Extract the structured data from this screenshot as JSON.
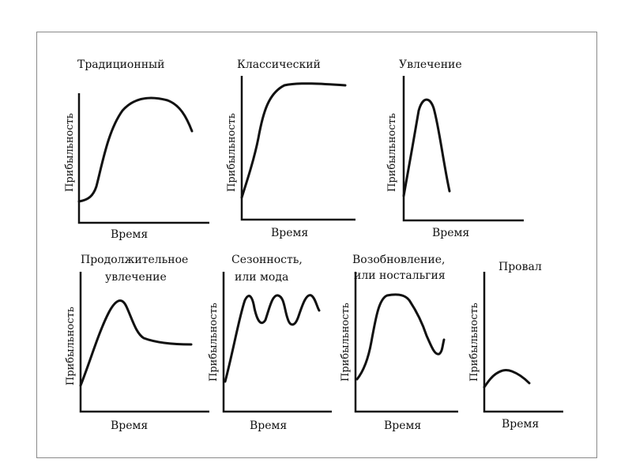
{
  "diagrams": [
    {
      "title_lines": [
        "Традиционный"
      ],
      "xlabel": "Время",
      "ylabel": "Прибыльность"
    },
    {
      "title_lines": [
        "Классический"
      ],
      "xlabel": "Время",
      "ylabel": "Прибыльность"
    },
    {
      "title_lines": [
        "Увлечение"
      ],
      "xlabel": "Время",
      "ylabel": "Прибыльность"
    },
    {
      "title_lines": [
        "Продолжительное",
        "увлечение"
      ],
      "xlabel": "Время",
      "ylabel": "Прибыльность"
    },
    {
      "title_lines": [
        "Сезонность,",
        "или мода"
      ],
      "xlabel": "Время",
      "ylabel": "Прибыльность"
    },
    {
      "title_lines": [
        "Возобновление,",
        "или ностальгия"
      ],
      "xlabel": "Время",
      "ylabel": "Прибыльность"
    },
    {
      "title_lines": [
        "Провал"
      ],
      "xlabel": "Время",
      "ylabel": "Прибыльность"
    }
  ]
}
